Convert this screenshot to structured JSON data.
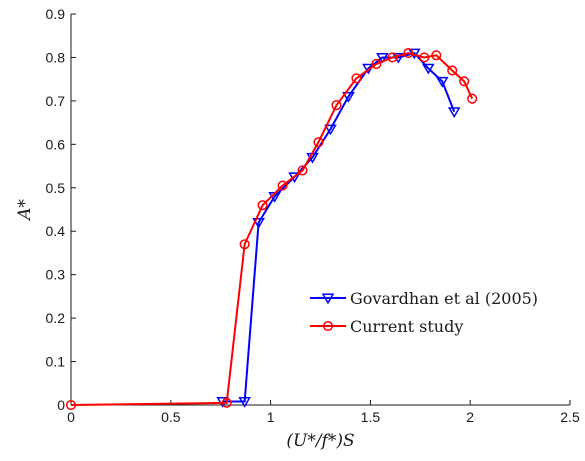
{
  "chart_data": {
    "type": "line",
    "xlabel": "(U*/f*)S",
    "ylabel": "A*",
    "xlim": [
      0,
      2.5
    ],
    "ylim": [
      0,
      0.9
    ],
    "xticks": [
      "0",
      "0.5",
      "1",
      "1.5",
      "2",
      "2.5"
    ],
    "yticks": [
      "0",
      "0.1",
      "0.2",
      "0.3",
      "0.4",
      "0.5",
      "0.6",
      "0.7",
      "0.8",
      "0.9"
    ],
    "grid": false,
    "legend_position": "bottom-right",
    "series": [
      {
        "name": "Govardhan et al (2005)",
        "color": "#0000ff",
        "marker": "triangle-down",
        "x": [
          0.76,
          0.87,
          0.94,
          1.02,
          1.12,
          1.21,
          1.3,
          1.39,
          1.49,
          1.56,
          1.64,
          1.72,
          1.79,
          1.86,
          1.92
        ],
        "y": [
          0.008,
          0.008,
          0.42,
          0.48,
          0.525,
          0.57,
          0.635,
          0.71,
          0.775,
          0.8,
          0.8,
          0.81,
          0.775,
          0.745,
          0.675
        ]
      },
      {
        "name": "Current study",
        "color": "#ff0000",
        "marker": "circle",
        "x": [
          0,
          0.78,
          0.87,
          0.96,
          1.06,
          1.16,
          1.24,
          1.33,
          1.43,
          1.53,
          1.61,
          1.69,
          1.77,
          1.83,
          1.91,
          1.97,
          2.01
        ],
        "y": [
          0.0,
          0.005,
          0.37,
          0.46,
          0.505,
          0.54,
          0.605,
          0.69,
          0.752,
          0.785,
          0.8,
          0.81,
          0.8,
          0.805,
          0.77,
          0.745,
          0.705
        ]
      }
    ]
  }
}
